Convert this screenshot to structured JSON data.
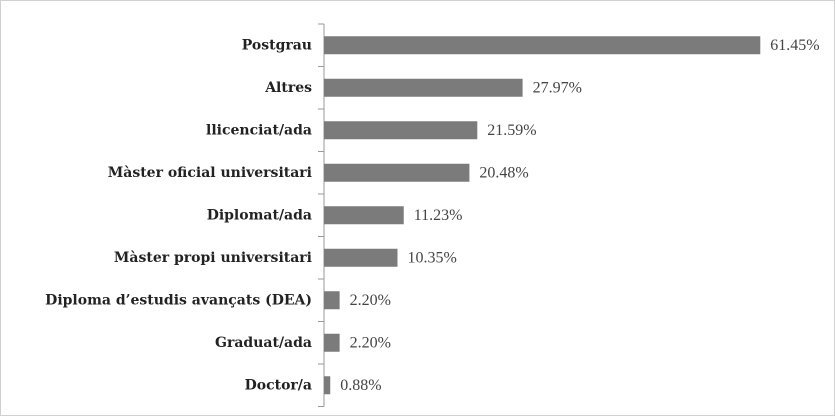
{
  "chart_data": {
    "type": "bar",
    "orientation": "horizontal",
    "color": "#7b7b7b",
    "categories": [
      "Postgrau",
      "Altres",
      "llicenciat/ada",
      "Màster oficial universitari",
      "Diplomat/ada",
      "Màster propi universitari",
      "Diploma d’estudis avançats (DEA)",
      "Graduat/ada",
      "Doctor/a"
    ],
    "values": [
      61.45,
      27.97,
      21.59,
      20.48,
      11.23,
      10.35,
      2.2,
      2.2,
      0.88
    ],
    "value_labels": [
      "61.45%",
      "27.97%",
      "21.59%",
      "20.48%",
      "11.23%",
      "10.35%",
      "2.20%",
      "2.20%",
      "0.88%"
    ]
  }
}
